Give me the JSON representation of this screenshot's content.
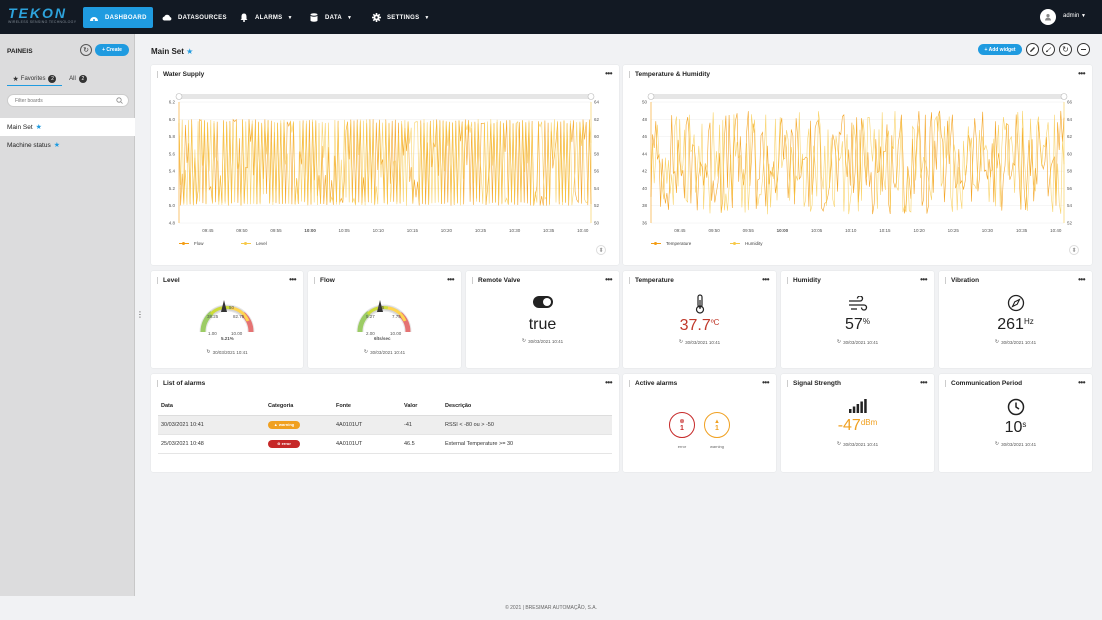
{
  "app": {
    "logo": "TEKON",
    "logo_tagline": "WIRELESS SENSING TECHNOLOGY",
    "user": "admin"
  },
  "nav": [
    {
      "label": "DASHBOARD",
      "icon": "dashboard-icon",
      "active": true
    },
    {
      "label": "DATASOURCES",
      "icon": "cloud-icon"
    },
    {
      "label": "ALARMS",
      "icon": "bell-icon"
    },
    {
      "label": "DATA",
      "icon": "database-icon"
    },
    {
      "label": "SETTINGS",
      "icon": "gear-icon"
    }
  ],
  "sidebar": {
    "title": "PAINEIS",
    "create_label": "+ Create",
    "tabs": [
      {
        "label": "Favorites",
        "count": "2"
      },
      {
        "label": "All",
        "count": "2"
      }
    ],
    "search_placeholder": "Filter boards",
    "items": [
      {
        "label": "Main Set",
        "selected": true
      },
      {
        "label": "Machine status"
      }
    ]
  },
  "main": {
    "title": "Main Set",
    "add_widget_label": "+ Add widget"
  },
  "widgets": {
    "water_supply": {
      "title": "Water Supply",
      "legend": [
        "Flow",
        "Level"
      ]
    },
    "temp_humidity": {
      "title": "Temperature & Humidity",
      "legend": [
        "Temperature",
        "Humidity"
      ]
    },
    "level": {
      "title": "Level",
      "min": "1.00",
      "max": "10.00",
      "low": "38.25",
      "high": "82.75",
      "center": "50",
      "value": "5.21",
      "unit": "%",
      "pointer": 0.47,
      "timestamp": "30/03/2021 10:41"
    },
    "flow": {
      "title": "Flow",
      "min": "2.00",
      "max": "10.00",
      "low": "5.27",
      "high": "7.75",
      "center": "6.5",
      "value": "6",
      "unit": "lts/sec",
      "pointer": 0.45,
      "timestamp": "30/03/2021 10:41"
    },
    "remote_valve": {
      "title": "Remote Valve",
      "value": "true",
      "timestamp": "30/03/2021 10:41"
    },
    "temperature": {
      "title": "Temperature",
      "value": "37.7",
      "unit": "ºC",
      "timestamp": "30/03/2021 10:41"
    },
    "humidity": {
      "title": "Humidity",
      "value": "57",
      "unit": "%",
      "timestamp": "30/03/2021 10:41"
    },
    "vibration": {
      "title": "Vibration",
      "value": "261",
      "unit": "Hz",
      "timestamp": "30/03/2021 10:41"
    },
    "list_of_alarms": {
      "title": "List of alarms",
      "columns": [
        "Data",
        "Categoria",
        "Fonte",
        "Valor",
        "Descrição"
      ],
      "rows": [
        {
          "data": "30/03/2021 10:41",
          "categoria": "warning",
          "fonte": "4A0101UT",
          "valor": "-41",
          "descricao": "RSSI < -80 ou > -50",
          "color": "#f0a020"
        },
        {
          "data": "25/03/2021 10:48",
          "categoria": "error",
          "fonte": "4A0101UT",
          "valor": "46.5",
          "descricao": "External Temperature >= 30",
          "color": "#c62828"
        }
      ]
    },
    "active_alarms": {
      "title": "Active alarms",
      "items": [
        {
          "count": "1",
          "label": "error",
          "color": "#c62828"
        },
        {
          "count": "1",
          "label": "warning",
          "color": "#f0a020"
        }
      ]
    },
    "signal_strength": {
      "title": "Signal Strength",
      "value": "-47",
      "unit": "dBm",
      "timestamp": "30/03/2021 10:41"
    },
    "communication_period": {
      "title": "Communication Period",
      "value": "10",
      "unit": "s",
      "timestamp": "30/03/2021 10:41"
    }
  },
  "chart_data": [
    {
      "type": "line",
      "title": "Water Supply",
      "x": [
        "09:45",
        "09:50",
        "09:55",
        "10:00",
        "10:05",
        "10:10",
        "10:15",
        "10:20",
        "10:25",
        "10:30",
        "10:35",
        "10:40"
      ],
      "y_left_ticks": [
        "6.2",
        "6.0",
        "5.8",
        "5.6",
        "5.4",
        "5.2",
        "5.0",
        "4.8"
      ],
      "y_right_ticks": [
        "64",
        "62",
        "60",
        "58",
        "56",
        "54",
        "52",
        "50"
      ],
      "ylim_left": [
        4.8,
        6.2
      ],
      "ylim_right": [
        50,
        64
      ],
      "series": [
        {
          "name": "Flow",
          "axis": "left",
          "color": "#f39c12",
          "min": 5.0,
          "max": 6.0
        },
        {
          "name": "Level",
          "axis": "right",
          "color": "#f7c948",
          "min": 52,
          "max": 62
        }
      ]
    },
    {
      "type": "line",
      "title": "Temperature & Humidity",
      "x": [
        "09:45",
        "09:50",
        "09:55",
        "10:00",
        "10:05",
        "10:10",
        "10:15",
        "10:20",
        "10:25",
        "10:30",
        "10:35",
        "10:40"
      ],
      "y_left_ticks": [
        "50",
        "48",
        "46",
        "44",
        "42",
        "40",
        "38",
        "36"
      ],
      "y_right_ticks": [
        "66",
        "64",
        "62",
        "60",
        "58",
        "56",
        "54",
        "52"
      ],
      "ylim_left": [
        36,
        50
      ],
      "ylim_right": [
        52,
        66
      ],
      "series": [
        {
          "name": "Temperature",
          "axis": "left",
          "color": "#f39c12",
          "min": 37,
          "max": 49
        },
        {
          "name": "Humidity",
          "axis": "right",
          "color": "#f7c948",
          "min": 53,
          "max": 65
        }
      ]
    }
  ],
  "footer": "© 2021 | BRESIMAR AUTOMAÇÃO, S.A."
}
